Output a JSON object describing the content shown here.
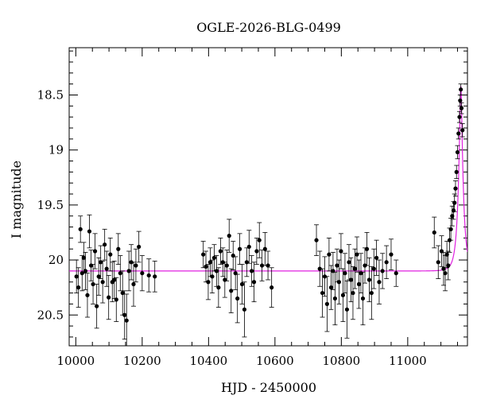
{
  "chart_data": {
    "type": "scatter",
    "title": "OGLE-2026-BLG-0499",
    "xlabel": "HJD - 2450000",
    "ylabel": "I magnitude",
    "xlim": [
      9980,
      11180
    ],
    "ylim": [
      20.78,
      18.07
    ],
    "y_inverted": true,
    "x_major_ticks": [
      10000,
      10200,
      10400,
      10600,
      10800,
      11000
    ],
    "x_tick_labels": [
      "10000",
      "10200",
      "10400",
      "10600",
      "10800",
      "11000"
    ],
    "y_major_ticks": [
      18.5,
      19,
      19.5,
      20,
      20.5
    ],
    "y_tick_labels": [
      "18.5",
      "19",
      "19.5",
      "20",
      "20.5"
    ],
    "x_minor_step": 50,
    "y_minor_step": 0.1,
    "grid": false,
    "legend": "none",
    "colors": {
      "points": "#000000",
      "model": "#e020e0",
      "axes": "#000000"
    },
    "model": {
      "type": "microlensing-pspl",
      "baseline_mag": 20.1,
      "peak_time": 11160,
      "peak_mag": 18.42,
      "einstein_time": 15
    },
    "series": [
      {
        "type": "errorbar-points",
        "x": [
          10002,
          10008,
          10014,
          10019,
          10024,
          10029,
          10035,
          10041,
          10046,
          10052,
          10058,
          10063,
          10069,
          10075,
          10081,
          10087,
          10093,
          10099,
          10104,
          10110,
          10116,
          10122,
          10128,
          10134,
          10141,
          10147,
          10153,
          10160,
          10167,
          10174,
          10181,
          10190,
          10200,
          10220,
          10238,
          10384,
          10392,
          10399,
          10405,
          10411,
          10417,
          10424,
          10430,
          10436,
          10443,
          10449,
          10455,
          10462,
          10468,
          10474,
          10481,
          10487,
          10494,
          10501,
          10508,
          10515,
          10522,
          10530,
          10537,
          10545,
          10553,
          10561,
          10570,
          10579,
          10590,
          10725,
          10735,
          10743,
          10750,
          10757,
          10763,
          10769,
          10775,
          10781,
          10787,
          10793,
          10799,
          10805,
          10811,
          10817,
          10823,
          10829,
          10835,
          10841,
          10847,
          10853,
          10859,
          10865,
          10871,
          10877,
          10884,
          10891,
          10898,
          10906,
          10914,
          10924,
          10936,
          10950,
          10965,
          11080,
          11092,
          11102,
          11108,
          11113,
          11118,
          11122,
          11126,
          11130,
          11134,
          11138,
          11141,
          11144,
          11147,
          11150,
          11153,
          11156,
          11158,
          11160,
          11162,
          11165
        ],
        "y": [
          20.15,
          20.25,
          19.72,
          20.12,
          19.98,
          20.1,
          20.32,
          19.74,
          20.05,
          20.22,
          19.92,
          20.42,
          20.15,
          20.02,
          20.2,
          19.86,
          20.08,
          20.34,
          19.95,
          20.2,
          20.18,
          20.36,
          19.9,
          20.12,
          20.3,
          20.5,
          20.55,
          20.1,
          20.02,
          20.22,
          20.05,
          19.88,
          20.12,
          20.14,
          20.15,
          19.95,
          20.06,
          20.2,
          20.02,
          20.15,
          19.98,
          20.1,
          20.25,
          19.92,
          20.02,
          20.18,
          20.05,
          19.78,
          20.28,
          19.96,
          20.12,
          20.35,
          19.9,
          20.22,
          20.45,
          20.02,
          19.88,
          20.1,
          20.2,
          19.92,
          19.82,
          20.05,
          19.9,
          20.05,
          20.25,
          19.82,
          20.08,
          20.3,
          20.15,
          20.4,
          19.95,
          20.25,
          20.1,
          20.35,
          20.05,
          20.2,
          19.92,
          20.32,
          20.12,
          20.45,
          20.02,
          20.18,
          20.3,
          20.08,
          19.95,
          20.22,
          20.12,
          20.35,
          20.05,
          19.9,
          20.18,
          20.3,
          20.08,
          19.98,
          20.2,
          20.1,
          20.02,
          19.95,
          20.12,
          19.75,
          20.02,
          19.92,
          20.08,
          20.12,
          19.95,
          20.05,
          19.82,
          19.72,
          19.6,
          19.55,
          19.48,
          19.35,
          19.2,
          19.02,
          18.85,
          18.7,
          18.55,
          18.45,
          18.62,
          18.82
        ],
        "err": [
          0.15,
          0.18,
          0.12,
          0.16,
          0.14,
          0.17,
          0.2,
          0.15,
          0.14,
          0.18,
          0.16,
          0.2,
          0.17,
          0.15,
          0.19,
          0.14,
          0.16,
          0.2,
          0.15,
          0.18,
          0.17,
          0.2,
          0.14,
          0.16,
          0.2,
          0.22,
          0.24,
          0.18,
          0.16,
          0.2,
          0.15,
          0.14,
          0.16,
          0.15,
          0.14,
          0.12,
          0.14,
          0.16,
          0.13,
          0.15,
          0.12,
          0.14,
          0.18,
          0.12,
          0.13,
          0.16,
          0.14,
          0.15,
          0.2,
          0.13,
          0.15,
          0.22,
          0.14,
          0.18,
          0.25,
          0.13,
          0.15,
          0.14,
          0.18,
          0.12,
          0.16,
          0.14,
          0.15,
          0.13,
          0.18,
          0.14,
          0.16,
          0.22,
          0.18,
          0.25,
          0.15,
          0.2,
          0.17,
          0.24,
          0.15,
          0.2,
          0.16,
          0.24,
          0.18,
          0.26,
          0.16,
          0.2,
          0.24,
          0.18,
          0.16,
          0.22,
          0.18,
          0.24,
          0.16,
          0.15,
          0.2,
          0.24,
          0.18,
          0.16,
          0.2,
          0.16,
          0.15,
          0.14,
          0.12,
          0.14,
          0.15,
          0.14,
          0.15,
          0.16,
          0.12,
          0.13,
          0.11,
          0.1,
          0.09,
          0.08,
          0.08,
          0.07,
          0.06,
          0.06,
          0.05,
          0.05,
          0.05,
          0.05,
          0.05,
          0.06
        ]
      }
    ]
  }
}
